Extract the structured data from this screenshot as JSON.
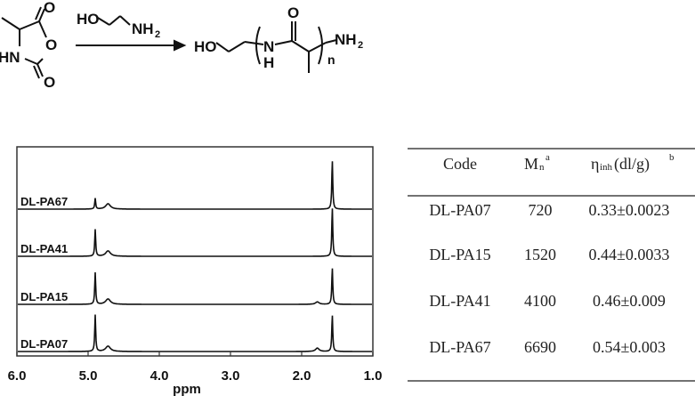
{
  "scheme": {
    "reactant": {
      "nh_label": "HN",
      "ring_o": "O",
      "carbonyl_o1": "O",
      "carbonyl_o2": "O"
    },
    "reagent": {
      "ho": "HO",
      "nh": "NH",
      "nh_sub": "2"
    },
    "product": {
      "ho": "HO",
      "n": "N",
      "h": "H",
      "carbonyl_o": "O",
      "nh": "NH",
      "nh_sub": "2",
      "repeat": "n"
    }
  },
  "chart_data": {
    "type": "line",
    "xlabel": "ppm",
    "xlim": [
      6.0,
      1.0
    ],
    "x_reversed": true,
    "xticks": [
      "6.0",
      "5.0",
      "4.0",
      "3.0",
      "2.0",
      "1.0"
    ],
    "grid": false,
    "stacked": true,
    "series": [
      {
        "name": "DL-PA67",
        "peaks": [
          {
            "ppm": 4.9,
            "intensity": 0.22
          },
          {
            "ppm": 4.72,
            "intensity": 0.11
          },
          {
            "ppm": 1.57,
            "intensity": 1.0
          }
        ]
      },
      {
        "name": "DL-PA41",
        "peaks": [
          {
            "ppm": 4.9,
            "intensity": 0.55
          },
          {
            "ppm": 4.72,
            "intensity": 0.11
          },
          {
            "ppm": 1.57,
            "intensity": 1.0
          }
        ]
      },
      {
        "name": "DL-PA15",
        "peaks": [
          {
            "ppm": 4.9,
            "intensity": 0.65
          },
          {
            "ppm": 4.72,
            "intensity": 0.11
          },
          {
            "ppm": 1.78,
            "intensity": 0.05
          },
          {
            "ppm": 1.57,
            "intensity": 0.75
          }
        ]
      },
      {
        "name": "DL-PA07",
        "peaks": [
          {
            "ppm": 4.9,
            "intensity": 0.75
          },
          {
            "ppm": 4.72,
            "intensity": 0.11
          },
          {
            "ppm": 1.78,
            "intensity": 0.07
          },
          {
            "ppm": 1.57,
            "intensity": 0.75
          }
        ]
      }
    ]
  },
  "table": {
    "headers": {
      "code": "Code",
      "mn": "M",
      "mn_sub": "n",
      "mn_sup": "a",
      "eta": "η",
      "eta_sub": "inh",
      "eta_unit": " (dl/g)",
      "eta_sup": "b"
    },
    "rows": [
      {
        "code": "DL-PA07",
        "mn": "720",
        "eta": "0.33±0.0023"
      },
      {
        "code": "DL-PA15",
        "mn": "1520",
        "eta": "0.44±0.0033"
      },
      {
        "code": "DL-PA41",
        "mn": "4100",
        "eta": "0.46±0.009"
      },
      {
        "code": "DL-PA67",
        "mn": "6690",
        "eta": "0.54±0.003"
      }
    ]
  }
}
